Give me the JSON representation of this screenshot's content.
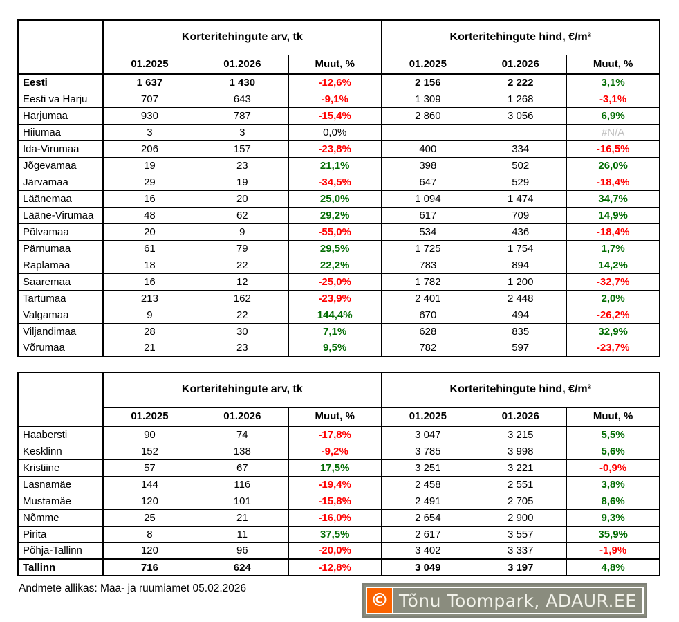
{
  "colors": {
    "negative": "#ff0000",
    "positive": "#006b00",
    "na": "#bfbfbf",
    "logo_orange": "#fb6300",
    "logo_olive": "#8a8c7e"
  },
  "chart_data": [
    {
      "type": "table",
      "column_groups": [
        "Korteritehingute arv, tk",
        "Korteritehingute hind, €/m²"
      ],
      "columns": [
        "01.2025",
        "01.2026",
        "Muut, %",
        "01.2025",
        "01.2026",
        "Muut, %"
      ],
      "rows": [
        {
          "name": "Eesti",
          "bold": true,
          "cells": [
            {
              "v": "1 637"
            },
            {
              "v": "1 430"
            },
            {
              "v": "-12,6%",
              "c": "neg"
            },
            {
              "v": "2 156"
            },
            {
              "v": "2 222"
            },
            {
              "v": "3,1%",
              "c": "pos"
            }
          ]
        },
        {
          "name": "Eesti va Harju",
          "cells": [
            {
              "v": "707"
            },
            {
              "v": "643"
            },
            {
              "v": "-9,1%",
              "c": "neg"
            },
            {
              "v": "1 309"
            },
            {
              "v": "1 268"
            },
            {
              "v": "-3,1%",
              "c": "neg"
            }
          ]
        },
        {
          "name": "Harjumaa",
          "cells": [
            {
              "v": "930"
            },
            {
              "v": "787"
            },
            {
              "v": "-15,4%",
              "c": "neg"
            },
            {
              "v": "2 860"
            },
            {
              "v": "3 056"
            },
            {
              "v": "6,9%",
              "c": "pos"
            }
          ]
        },
        {
          "name": "Hiiumaa",
          "cells": [
            {
              "v": "3"
            },
            {
              "v": "3"
            },
            {
              "v": "0,0%"
            },
            {
              "v": ""
            },
            {
              "v": ""
            },
            {
              "v": "#N/A",
              "c": "na"
            }
          ]
        },
        {
          "name": "Ida-Virumaa",
          "cells": [
            {
              "v": "206"
            },
            {
              "v": "157"
            },
            {
              "v": "-23,8%",
              "c": "neg"
            },
            {
              "v": "400"
            },
            {
              "v": "334"
            },
            {
              "v": "-16,5%",
              "c": "neg"
            }
          ]
        },
        {
          "name": "Jõgevamaa",
          "cells": [
            {
              "v": "19"
            },
            {
              "v": "23"
            },
            {
              "v": "21,1%",
              "c": "pos"
            },
            {
              "v": "398"
            },
            {
              "v": "502"
            },
            {
              "v": "26,0%",
              "c": "pos"
            }
          ]
        },
        {
          "name": "Järvamaa",
          "cells": [
            {
              "v": "29"
            },
            {
              "v": "19"
            },
            {
              "v": "-34,5%",
              "c": "neg"
            },
            {
              "v": "647"
            },
            {
              "v": "529"
            },
            {
              "v": "-18,4%",
              "c": "neg"
            }
          ]
        },
        {
          "name": "Läänemaa",
          "cells": [
            {
              "v": "16"
            },
            {
              "v": "20"
            },
            {
              "v": "25,0%",
              "c": "pos"
            },
            {
              "v": "1 094"
            },
            {
              "v": "1 474"
            },
            {
              "v": "34,7%",
              "c": "pos"
            }
          ]
        },
        {
          "name": "Lääne-Virumaa",
          "cells": [
            {
              "v": "48"
            },
            {
              "v": "62"
            },
            {
              "v": "29,2%",
              "c": "pos"
            },
            {
              "v": "617"
            },
            {
              "v": "709"
            },
            {
              "v": "14,9%",
              "c": "pos"
            }
          ]
        },
        {
          "name": "Põlvamaa",
          "cells": [
            {
              "v": "20"
            },
            {
              "v": "9"
            },
            {
              "v": "-55,0%",
              "c": "neg"
            },
            {
              "v": "534"
            },
            {
              "v": "436"
            },
            {
              "v": "-18,4%",
              "c": "neg"
            }
          ]
        },
        {
          "name": "Pärnumaa",
          "cells": [
            {
              "v": "61"
            },
            {
              "v": "79"
            },
            {
              "v": "29,5%",
              "c": "pos"
            },
            {
              "v": "1 725"
            },
            {
              "v": "1 754"
            },
            {
              "v": "1,7%",
              "c": "pos"
            }
          ]
        },
        {
          "name": "Raplamaa",
          "cells": [
            {
              "v": "18"
            },
            {
              "v": "22"
            },
            {
              "v": "22,2%",
              "c": "pos"
            },
            {
              "v": "783"
            },
            {
              "v": "894"
            },
            {
              "v": "14,2%",
              "c": "pos"
            }
          ]
        },
        {
          "name": "Saaremaa",
          "cells": [
            {
              "v": "16"
            },
            {
              "v": "12"
            },
            {
              "v": "-25,0%",
              "c": "neg"
            },
            {
              "v": "1 782"
            },
            {
              "v": "1 200"
            },
            {
              "v": "-32,7%",
              "c": "neg"
            }
          ]
        },
        {
          "name": "Tartumaa",
          "cells": [
            {
              "v": "213"
            },
            {
              "v": "162"
            },
            {
              "v": "-23,9%",
              "c": "neg"
            },
            {
              "v": "2 401"
            },
            {
              "v": "2 448"
            },
            {
              "v": "2,0%",
              "c": "pos"
            }
          ]
        },
        {
          "name": "Valgamaa",
          "cells": [
            {
              "v": "9"
            },
            {
              "v": "22"
            },
            {
              "v": "144,4%",
              "c": "pos"
            },
            {
              "v": "670"
            },
            {
              "v": "494"
            },
            {
              "v": "-26,2%",
              "c": "neg"
            }
          ]
        },
        {
          "name": "Viljandimaa",
          "cells": [
            {
              "v": "28"
            },
            {
              "v": "30"
            },
            {
              "v": "7,1%",
              "c": "pos"
            },
            {
              "v": "628"
            },
            {
              "v": "835"
            },
            {
              "v": "32,9%",
              "c": "pos"
            }
          ]
        },
        {
          "name": "Võrumaa",
          "cells": [
            {
              "v": "21"
            },
            {
              "v": "23"
            },
            {
              "v": "9,5%",
              "c": "pos"
            },
            {
              "v": "782"
            },
            {
              "v": "597"
            },
            {
              "v": "-23,7%",
              "c": "neg"
            }
          ]
        }
      ]
    },
    {
      "type": "table",
      "column_groups": [
        "Korteritehingute arv, tk",
        "Korteritehingute hind, €/m²"
      ],
      "columns": [
        "01.2025",
        "01.2026",
        "Muut, %",
        "01.2025",
        "01.2026",
        "Muut, %"
      ],
      "rows": [
        {
          "name": "Haabersti",
          "cells": [
            {
              "v": "90"
            },
            {
              "v": "74"
            },
            {
              "v": "-17,8%",
              "c": "neg"
            },
            {
              "v": "3 047"
            },
            {
              "v": "3 215"
            },
            {
              "v": "5,5%",
              "c": "pos"
            }
          ]
        },
        {
          "name": "Kesklinn",
          "cells": [
            {
              "v": "152"
            },
            {
              "v": "138"
            },
            {
              "v": "-9,2%",
              "c": "neg"
            },
            {
              "v": "3 785"
            },
            {
              "v": "3 998"
            },
            {
              "v": "5,6%",
              "c": "pos"
            }
          ]
        },
        {
          "name": "Kristiine",
          "cells": [
            {
              "v": "57"
            },
            {
              "v": "67"
            },
            {
              "v": "17,5%",
              "c": "pos"
            },
            {
              "v": "3 251"
            },
            {
              "v": "3 221"
            },
            {
              "v": "-0,9%",
              "c": "neg"
            }
          ]
        },
        {
          "name": "Lasnamäe",
          "cells": [
            {
              "v": "144"
            },
            {
              "v": "116"
            },
            {
              "v": "-19,4%",
              "c": "neg"
            },
            {
              "v": "2 458"
            },
            {
              "v": "2 551"
            },
            {
              "v": "3,8%",
              "c": "pos"
            }
          ]
        },
        {
          "name": "Mustamäe",
          "cells": [
            {
              "v": "120"
            },
            {
              "v": "101"
            },
            {
              "v": "-15,8%",
              "c": "neg"
            },
            {
              "v": "2 491"
            },
            {
              "v": "2 705"
            },
            {
              "v": "8,6%",
              "c": "pos"
            }
          ]
        },
        {
          "name": "Nõmme",
          "cells": [
            {
              "v": "25"
            },
            {
              "v": "21"
            },
            {
              "v": "-16,0%",
              "c": "neg"
            },
            {
              "v": "2 654"
            },
            {
              "v": "2 900"
            },
            {
              "v": "9,3%",
              "c": "pos"
            }
          ]
        },
        {
          "name": "Pirita",
          "cells": [
            {
              "v": "8"
            },
            {
              "v": "11"
            },
            {
              "v": "37,5%",
              "c": "pos"
            },
            {
              "v": "2 617"
            },
            {
              "v": "3 557"
            },
            {
              "v": "35,9%",
              "c": "pos"
            }
          ]
        },
        {
          "name": "Põhja-Tallinn",
          "cells": [
            {
              "v": "120"
            },
            {
              "v": "96"
            },
            {
              "v": "-20,0%",
              "c": "neg"
            },
            {
              "v": "3 402"
            },
            {
              "v": "3 337"
            },
            {
              "v": "-1,9%",
              "c": "neg"
            }
          ]
        },
        {
          "name": "Tallinn",
          "bold": true,
          "total": true,
          "cells": [
            {
              "v": "716"
            },
            {
              "v": "624"
            },
            {
              "v": "-12,8%",
              "c": "neg"
            },
            {
              "v": "3 049"
            },
            {
              "v": "3 197"
            },
            {
              "v": "4,8%",
              "c": "pos"
            }
          ]
        }
      ]
    }
  ],
  "footer": {
    "source_note": "Andmete allikas: Maa- ja ruumiamet 05.02.2026"
  },
  "logo": {
    "copyright_symbol": "©",
    "text": "Tõnu Toompark, ADAUR.EE"
  }
}
